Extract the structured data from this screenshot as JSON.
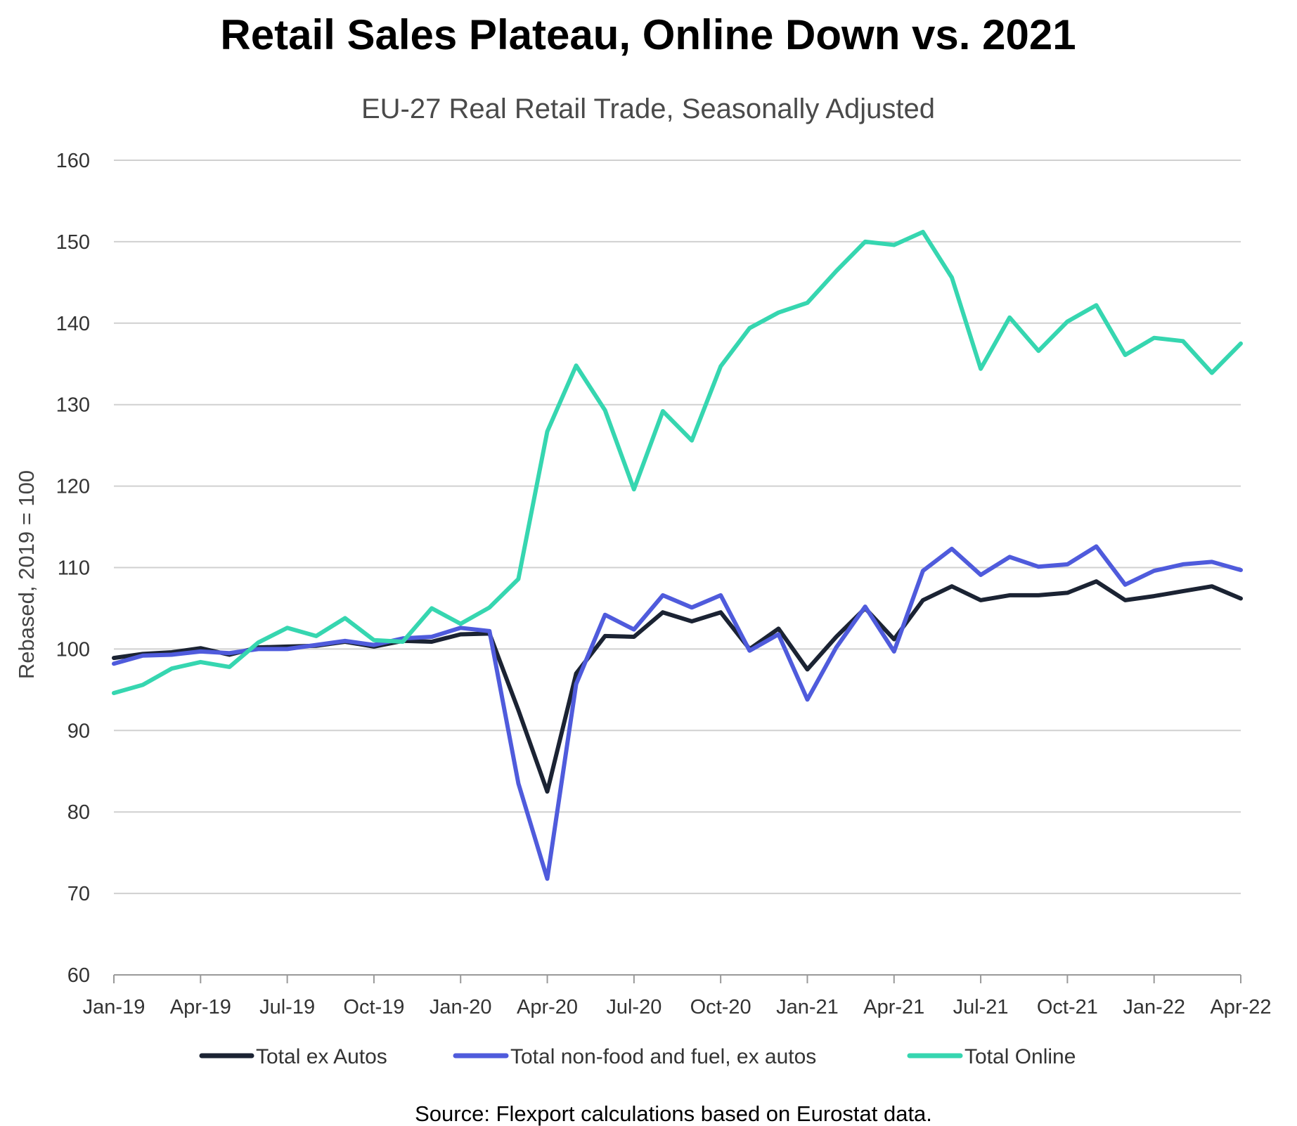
{
  "chart_data": {
    "type": "line",
    "title": "Retail Sales Plateau, Online Down vs. 2021",
    "subtitle": "EU-27 Real Retail Trade, Seasonally Adjusted",
    "ylabel": "Rebased,  2019 = 100",
    "xlabel": "",
    "ylim": [
      60,
      160
    ],
    "yticks": [
      "60",
      "70",
      "80",
      "90",
      "100",
      "110",
      "120",
      "130",
      "140",
      "150",
      "160"
    ],
    "xtick_labels": [
      "Jan-19",
      "Apr-19",
      "Jul-19",
      "Oct-19",
      "Jan-20",
      "Apr-20",
      "Jul-20",
      "Oct-20",
      "Jan-21",
      "Apr-21",
      "Jul-21",
      "Oct-21",
      "Jan-22",
      "Apr-22"
    ],
    "x": [
      "Jan-19",
      "Feb-19",
      "Mar-19",
      "Apr-19",
      "May-19",
      "Jun-19",
      "Jul-19",
      "Aug-19",
      "Sep-19",
      "Oct-19",
      "Nov-19",
      "Dec-19",
      "Jan-20",
      "Feb-20",
      "Mar-20",
      "Apr-20",
      "May-20",
      "Jun-20",
      "Jul-20",
      "Aug-20",
      "Sep-20",
      "Oct-20",
      "Nov-20",
      "Dec-20",
      "Jan-21",
      "Feb-21",
      "Mar-21",
      "Apr-21",
      "May-21",
      "Jun-21",
      "Jul-21",
      "Aug-21",
      "Sep-21",
      "Oct-21",
      "Nov-21",
      "Dec-21",
      "Jan-22",
      "Feb-22",
      "Mar-22",
      "Apr-22"
    ],
    "grid": true,
    "legend_position": "bottom",
    "series": [
      {
        "name": "Total ex Autos",
        "color": "#1b2333",
        "values": [
          98.9,
          99.4,
          99.6,
          100.1,
          99.3,
          100.2,
          100.3,
          100.4,
          100.9,
          100.3,
          101.0,
          100.9,
          101.8,
          101.9,
          92.5,
          82.5,
          97.0,
          101.6,
          101.5,
          104.5,
          103.4,
          104.5,
          100.0,
          102.5,
          97.5,
          101.5,
          105.0,
          101.2,
          106.0,
          107.7,
          106.0,
          106.6,
          106.6,
          106.9,
          108.3,
          106.0,
          106.5,
          107.1,
          107.7,
          106.2
        ]
      },
      {
        "name": "Total non-food and fuel, ex autos",
        "color": "#4f5bdc",
        "values": [
          98.2,
          99.2,
          99.3,
          99.7,
          99.5,
          100.0,
          100.0,
          100.5,
          101.0,
          100.5,
          101.3,
          101.5,
          102.6,
          102.2,
          83.5,
          71.8,
          95.7,
          104.2,
          102.4,
          106.6,
          105.1,
          106.6,
          99.8,
          101.8,
          93.8,
          100.2,
          105.2,
          99.7,
          109.6,
          112.3,
          109.1,
          111.3,
          110.1,
          110.4,
          112.6,
          107.9,
          109.6,
          110.4,
          110.7,
          109.7
        ]
      },
      {
        "name": "Total Online",
        "color": "#36d6b0",
        "values": [
          94.6,
          95.6,
          97.6,
          98.4,
          97.8,
          100.8,
          102.6,
          101.6,
          103.8,
          101.1,
          100.9,
          105.0,
          103.1,
          105.1,
          108.6,
          126.7,
          134.8,
          129.3,
          119.6,
          129.2,
          125.6,
          134.7,
          139.4,
          141.3,
          142.5,
          146.4,
          150.0,
          149.6,
          151.2,
          145.6,
          134.4,
          140.7,
          136.6,
          140.2,
          142.2,
          136.1,
          138.2,
          137.8,
          133.9,
          137.5
        ]
      }
    ],
    "source": "Source: Flexport calculations based on Eurostat data."
  }
}
